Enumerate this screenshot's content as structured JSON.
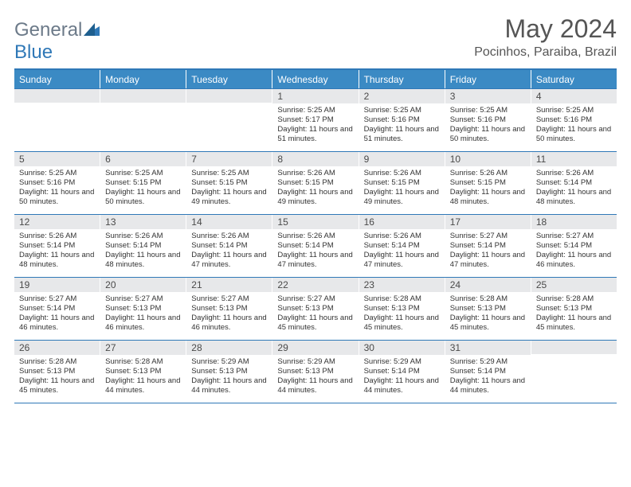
{
  "logo": {
    "part1": "General",
    "part2": "Blue"
  },
  "title": "May 2024",
  "location": "Pocinhos, Paraiba, Brazil",
  "colors": {
    "header_bg": "#3b8ac4",
    "border": "#2f78b7",
    "daynum_bg": "#e7e8ea",
    "text": "#333333"
  },
  "weekdays": [
    "Sunday",
    "Monday",
    "Tuesday",
    "Wednesday",
    "Thursday",
    "Friday",
    "Saturday"
  ],
  "weeks": [
    [
      {
        "day": "",
        "sunrise": "",
        "sunset": "",
        "daylight": ""
      },
      {
        "day": "",
        "sunrise": "",
        "sunset": "",
        "daylight": ""
      },
      {
        "day": "",
        "sunrise": "",
        "sunset": "",
        "daylight": ""
      },
      {
        "day": "1",
        "sunrise": "Sunrise: 5:25 AM",
        "sunset": "Sunset: 5:17 PM",
        "daylight": "Daylight: 11 hours and 51 minutes."
      },
      {
        "day": "2",
        "sunrise": "Sunrise: 5:25 AM",
        "sunset": "Sunset: 5:16 PM",
        "daylight": "Daylight: 11 hours and 51 minutes."
      },
      {
        "day": "3",
        "sunrise": "Sunrise: 5:25 AM",
        "sunset": "Sunset: 5:16 PM",
        "daylight": "Daylight: 11 hours and 50 minutes."
      },
      {
        "day": "4",
        "sunrise": "Sunrise: 5:25 AM",
        "sunset": "Sunset: 5:16 PM",
        "daylight": "Daylight: 11 hours and 50 minutes."
      }
    ],
    [
      {
        "day": "5",
        "sunrise": "Sunrise: 5:25 AM",
        "sunset": "Sunset: 5:16 PM",
        "daylight": "Daylight: 11 hours and 50 minutes."
      },
      {
        "day": "6",
        "sunrise": "Sunrise: 5:25 AM",
        "sunset": "Sunset: 5:15 PM",
        "daylight": "Daylight: 11 hours and 50 minutes."
      },
      {
        "day": "7",
        "sunrise": "Sunrise: 5:25 AM",
        "sunset": "Sunset: 5:15 PM",
        "daylight": "Daylight: 11 hours and 49 minutes."
      },
      {
        "day": "8",
        "sunrise": "Sunrise: 5:26 AM",
        "sunset": "Sunset: 5:15 PM",
        "daylight": "Daylight: 11 hours and 49 minutes."
      },
      {
        "day": "9",
        "sunrise": "Sunrise: 5:26 AM",
        "sunset": "Sunset: 5:15 PM",
        "daylight": "Daylight: 11 hours and 49 minutes."
      },
      {
        "day": "10",
        "sunrise": "Sunrise: 5:26 AM",
        "sunset": "Sunset: 5:15 PM",
        "daylight": "Daylight: 11 hours and 48 minutes."
      },
      {
        "day": "11",
        "sunrise": "Sunrise: 5:26 AM",
        "sunset": "Sunset: 5:14 PM",
        "daylight": "Daylight: 11 hours and 48 minutes."
      }
    ],
    [
      {
        "day": "12",
        "sunrise": "Sunrise: 5:26 AM",
        "sunset": "Sunset: 5:14 PM",
        "daylight": "Daylight: 11 hours and 48 minutes."
      },
      {
        "day": "13",
        "sunrise": "Sunrise: 5:26 AM",
        "sunset": "Sunset: 5:14 PM",
        "daylight": "Daylight: 11 hours and 48 minutes."
      },
      {
        "day": "14",
        "sunrise": "Sunrise: 5:26 AM",
        "sunset": "Sunset: 5:14 PM",
        "daylight": "Daylight: 11 hours and 47 minutes."
      },
      {
        "day": "15",
        "sunrise": "Sunrise: 5:26 AM",
        "sunset": "Sunset: 5:14 PM",
        "daylight": "Daylight: 11 hours and 47 minutes."
      },
      {
        "day": "16",
        "sunrise": "Sunrise: 5:26 AM",
        "sunset": "Sunset: 5:14 PM",
        "daylight": "Daylight: 11 hours and 47 minutes."
      },
      {
        "day": "17",
        "sunrise": "Sunrise: 5:27 AM",
        "sunset": "Sunset: 5:14 PM",
        "daylight": "Daylight: 11 hours and 47 minutes."
      },
      {
        "day": "18",
        "sunrise": "Sunrise: 5:27 AM",
        "sunset": "Sunset: 5:14 PM",
        "daylight": "Daylight: 11 hours and 46 minutes."
      }
    ],
    [
      {
        "day": "19",
        "sunrise": "Sunrise: 5:27 AM",
        "sunset": "Sunset: 5:14 PM",
        "daylight": "Daylight: 11 hours and 46 minutes."
      },
      {
        "day": "20",
        "sunrise": "Sunrise: 5:27 AM",
        "sunset": "Sunset: 5:13 PM",
        "daylight": "Daylight: 11 hours and 46 minutes."
      },
      {
        "day": "21",
        "sunrise": "Sunrise: 5:27 AM",
        "sunset": "Sunset: 5:13 PM",
        "daylight": "Daylight: 11 hours and 46 minutes."
      },
      {
        "day": "22",
        "sunrise": "Sunrise: 5:27 AM",
        "sunset": "Sunset: 5:13 PM",
        "daylight": "Daylight: 11 hours and 45 minutes."
      },
      {
        "day": "23",
        "sunrise": "Sunrise: 5:28 AM",
        "sunset": "Sunset: 5:13 PM",
        "daylight": "Daylight: 11 hours and 45 minutes."
      },
      {
        "day": "24",
        "sunrise": "Sunrise: 5:28 AM",
        "sunset": "Sunset: 5:13 PM",
        "daylight": "Daylight: 11 hours and 45 minutes."
      },
      {
        "day": "25",
        "sunrise": "Sunrise: 5:28 AM",
        "sunset": "Sunset: 5:13 PM",
        "daylight": "Daylight: 11 hours and 45 minutes."
      }
    ],
    [
      {
        "day": "26",
        "sunrise": "Sunrise: 5:28 AM",
        "sunset": "Sunset: 5:13 PM",
        "daylight": "Daylight: 11 hours and 45 minutes."
      },
      {
        "day": "27",
        "sunrise": "Sunrise: 5:28 AM",
        "sunset": "Sunset: 5:13 PM",
        "daylight": "Daylight: 11 hours and 44 minutes."
      },
      {
        "day": "28",
        "sunrise": "Sunrise: 5:29 AM",
        "sunset": "Sunset: 5:13 PM",
        "daylight": "Daylight: 11 hours and 44 minutes."
      },
      {
        "day": "29",
        "sunrise": "Sunrise: 5:29 AM",
        "sunset": "Sunset: 5:13 PM",
        "daylight": "Daylight: 11 hours and 44 minutes."
      },
      {
        "day": "30",
        "sunrise": "Sunrise: 5:29 AM",
        "sunset": "Sunset: 5:14 PM",
        "daylight": "Daylight: 11 hours and 44 minutes."
      },
      {
        "day": "31",
        "sunrise": "Sunrise: 5:29 AM",
        "sunset": "Sunset: 5:14 PM",
        "daylight": "Daylight: 11 hours and 44 minutes."
      },
      {
        "day": "",
        "sunrise": "",
        "sunset": "",
        "daylight": ""
      }
    ]
  ]
}
